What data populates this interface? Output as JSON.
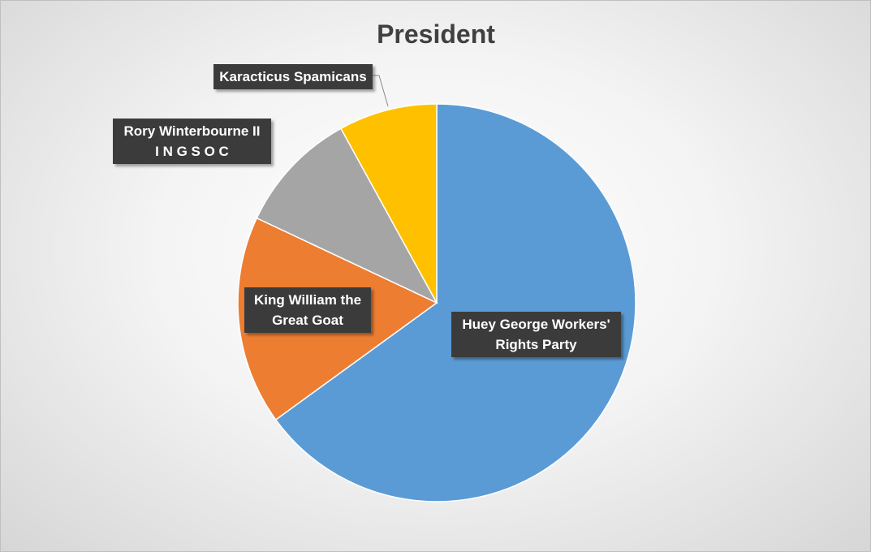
{
  "chart_data": {
    "type": "pie",
    "title": "President",
    "categories": [
      "Huey George Workers' Rights Party",
      "King William the Great Goat",
      "Rory Winterbourne II\nI N G S O C",
      "Karacticus Spamicans"
    ],
    "values": [
      65,
      17,
      10,
      8
    ],
    "colors": [
      "#5b9bd5",
      "#ed7d31",
      "#a5a5a5",
      "#ffc000"
    ]
  }
}
